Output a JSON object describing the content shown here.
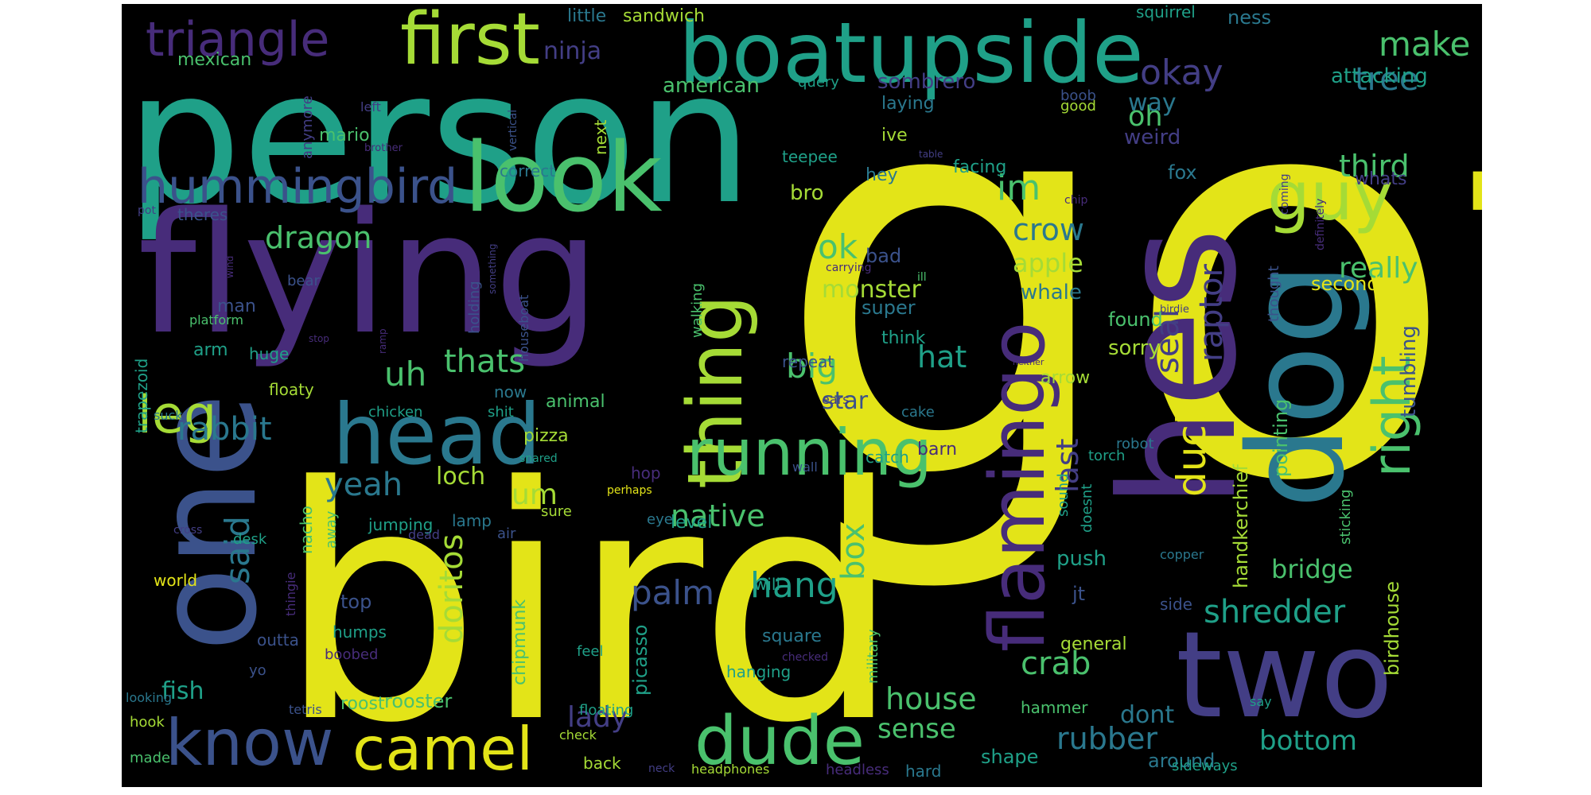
{
  "colors": {
    "background": "#000000",
    "yellow": "#e3e418",
    "lime": "#a5db36",
    "green": "#4ac16d",
    "teal": "#1fa088",
    "cyan": "#2a788e",
    "blue": "#3b528b",
    "indigo": "#433e85",
    "purple": "#472c7a"
  },
  "words": [
    {
      "text": "got",
      "color": "yellow"
    },
    {
      "text": "bird",
      "color": "yellow"
    },
    {
      "text": "person",
      "color": "teal"
    },
    {
      "text": "flying",
      "color": "purple"
    },
    {
      "text": "hes",
      "color": "purple"
    },
    {
      "text": "dog",
      "color": "cyan"
    },
    {
      "text": "one",
      "color": "blue"
    },
    {
      "text": "two",
      "color": "indigo"
    },
    {
      "text": "boatupside",
      "color": "teal"
    },
    {
      "text": "look",
      "color": "green"
    },
    {
      "text": "first",
      "color": "lime"
    },
    {
      "text": "head",
      "color": "cyan"
    },
    {
      "text": "thing",
      "color": "lime"
    },
    {
      "text": "flamingo",
      "color": "purple"
    },
    {
      "text": "running",
      "color": "green"
    },
    {
      "text": "dude",
      "color": "green"
    },
    {
      "text": "camel",
      "color": "yellow"
    },
    {
      "text": "know",
      "color": "blue"
    },
    {
      "text": "guy",
      "color": "lime"
    },
    {
      "text": "right",
      "color": "green"
    },
    {
      "text": "leg",
      "color": "lime"
    },
    {
      "text": "hummingbird",
      "color": "blue"
    },
    {
      "text": "triangle",
      "color": "purple"
    },
    {
      "text": "duck",
      "color": "yellow"
    },
    {
      "text": "seal",
      "color": "indigo"
    },
    {
      "text": "raptor",
      "color": "indigo"
    },
    {
      "text": "make",
      "color": "green"
    },
    {
      "text": "tree",
      "color": "cyan"
    },
    {
      "text": "okay",
      "color": "indigo"
    },
    {
      "text": "oh",
      "color": "green"
    },
    {
      "text": "third",
      "color": "green"
    },
    {
      "text": "really",
      "color": "green"
    },
    {
      "text": "crow",
      "color": "cyan"
    },
    {
      "text": "im",
      "color": "green"
    },
    {
      "text": "apple",
      "color": "lime"
    },
    {
      "text": "whale",
      "color": "cyan"
    },
    {
      "text": "ok",
      "color": "green"
    },
    {
      "text": "monster",
      "color": "lime"
    },
    {
      "text": "dragon",
      "color": "green"
    },
    {
      "text": "big",
      "color": "green"
    },
    {
      "text": "hat",
      "color": "teal"
    },
    {
      "text": "thats",
      "color": "green"
    },
    {
      "text": "uh",
      "color": "green"
    },
    {
      "text": "rabbit",
      "color": "cyan"
    },
    {
      "text": "said",
      "color": "cyan"
    },
    {
      "text": "yeah",
      "color": "cyan"
    },
    {
      "text": "loch",
      "color": "lime"
    },
    {
      "text": "um",
      "color": "lime"
    },
    {
      "text": "last",
      "color": "indigo"
    },
    {
      "text": "doritos",
      "color": "lime"
    },
    {
      "text": "hang",
      "color": "teal"
    },
    {
      "text": "palm",
      "color": "blue"
    },
    {
      "text": "box",
      "color": "green"
    },
    {
      "text": "crab",
      "color": "green"
    },
    {
      "text": "shredder",
      "color": "teal"
    },
    {
      "text": "bridge",
      "color": "green"
    },
    {
      "text": "bottom",
      "color": "teal"
    },
    {
      "text": "rubber",
      "color": "cyan"
    },
    {
      "text": "house",
      "color": "green"
    },
    {
      "text": "sense",
      "color": "green"
    },
    {
      "text": "lady",
      "color": "indigo"
    },
    {
      "text": "fish",
      "color": "teal"
    },
    {
      "text": "rooster",
      "color": "green"
    },
    {
      "text": "roost",
      "color": "green"
    },
    {
      "text": "native",
      "color": "green"
    },
    {
      "text": "star",
      "color": "blue"
    },
    {
      "text": "sorry",
      "color": "lime"
    },
    {
      "text": "found",
      "color": "green"
    },
    {
      "text": "second",
      "color": "yellow"
    },
    {
      "text": "attacking",
      "color": "teal"
    },
    {
      "text": "tumbling",
      "color": "blue"
    },
    {
      "text": "birdhouse",
      "color": "lime"
    },
    {
      "text": "pointing",
      "color": "green"
    },
    {
      "text": "handkerchief",
      "color": "lime"
    },
    {
      "text": "ninja",
      "color": "indigo"
    },
    {
      "text": "sombrero",
      "color": "indigo"
    },
    {
      "text": "american",
      "color": "green"
    },
    {
      "text": "way",
      "color": "cyan"
    },
    {
      "text": "weird",
      "color": "indigo"
    },
    {
      "text": "fox",
      "color": "cyan"
    },
    {
      "text": "whats",
      "color": "indigo"
    },
    {
      "text": "mexican",
      "color": "green"
    },
    {
      "text": "little",
      "color": "cyan"
    },
    {
      "text": "sandwich",
      "color": "lime"
    },
    {
      "text": "squirrel",
      "color": "teal"
    },
    {
      "text": "ness",
      "color": "cyan"
    },
    {
      "text": "query",
      "color": "teal"
    },
    {
      "text": "good",
      "color": "lime"
    },
    {
      "text": "boob",
      "color": "blue"
    },
    {
      "text": "laying",
      "color": "cyan"
    },
    {
      "text": "mario",
      "color": "green"
    },
    {
      "text": "ive",
      "color": "lime"
    },
    {
      "text": "correct",
      "color": "cyan"
    },
    {
      "text": "next",
      "color": "lime"
    },
    {
      "text": "teepee",
      "color": "teal"
    },
    {
      "text": "facing",
      "color": "teal"
    },
    {
      "text": "bro",
      "color": "lime"
    },
    {
      "text": "hey",
      "color": "cyan"
    },
    {
      "text": "theres",
      "color": "blue"
    },
    {
      "text": "bad",
      "color": "blue"
    },
    {
      "text": "super",
      "color": "cyan"
    },
    {
      "text": "think",
      "color": "teal"
    },
    {
      "text": "man",
      "color": "blue"
    },
    {
      "text": "arm",
      "color": "teal"
    },
    {
      "text": "huge",
      "color": "teal"
    },
    {
      "text": "floaty",
      "color": "lime"
    },
    {
      "text": "chicken",
      "color": "teal"
    },
    {
      "text": "animal",
      "color": "green"
    },
    {
      "text": "now",
      "color": "cyan"
    },
    {
      "text": "shit",
      "color": "teal"
    },
    {
      "text": "pizza",
      "color": "lime"
    },
    {
      "text": "repeat",
      "color": "blue"
    },
    {
      "text": "ears",
      "color": "indigo"
    },
    {
      "text": "arrow",
      "color": "lime"
    },
    {
      "text": "cake",
      "color": "cyan"
    },
    {
      "text": "barn",
      "color": "purple"
    },
    {
      "text": "catch",
      "color": "teal"
    },
    {
      "text": "wall",
      "color": "blue"
    },
    {
      "text": "torch",
      "color": "teal"
    },
    {
      "text": "robot",
      "color": "cyan"
    },
    {
      "text": "hop",
      "color": "purple"
    },
    {
      "text": "snared",
      "color": "teal"
    },
    {
      "text": "perhaps",
      "color": "yellow"
    },
    {
      "text": "eye",
      "color": "cyan"
    },
    {
      "text": "sure",
      "color": "lime"
    },
    {
      "text": "jumping",
      "color": "teal"
    },
    {
      "text": "lamp",
      "color": "cyan"
    },
    {
      "text": "level",
      "color": "teal"
    },
    {
      "text": "nacho",
      "color": "green"
    },
    {
      "text": "away",
      "color": "green"
    },
    {
      "text": "desk",
      "color": "teal"
    },
    {
      "text": "world",
      "color": "yellow"
    },
    {
      "text": "top",
      "color": "blue"
    },
    {
      "text": "humps",
      "color": "teal"
    },
    {
      "text": "boobed",
      "color": "purple"
    },
    {
      "text": "chipmunk",
      "color": "green"
    },
    {
      "text": "picasso",
      "color": "teal"
    },
    {
      "text": "square",
      "color": "cyan"
    },
    {
      "text": "military",
      "color": "green"
    },
    {
      "text": "feel",
      "color": "teal"
    },
    {
      "text": "checked",
      "color": "purple"
    },
    {
      "text": "hanging",
      "color": "teal"
    },
    {
      "text": "will",
      "color": "teal"
    },
    {
      "text": "push",
      "color": "teal"
    },
    {
      "text": "jt",
      "color": "blue"
    },
    {
      "text": "general",
      "color": "lime"
    },
    {
      "text": "hammer",
      "color": "green"
    },
    {
      "text": "dont",
      "color": "cyan"
    },
    {
      "text": "around",
      "color": "cyan"
    },
    {
      "text": "shape",
      "color": "teal"
    },
    {
      "text": "hard",
      "color": "cyan"
    },
    {
      "text": "headless",
      "color": "purple"
    },
    {
      "text": "sideways",
      "color": "teal"
    },
    {
      "text": "say",
      "color": "teal"
    },
    {
      "text": "side",
      "color": "blue"
    },
    {
      "text": "copper",
      "color": "cyan"
    },
    {
      "text": "sticking",
      "color": "green"
    },
    {
      "text": "doesnt",
      "color": "teal"
    },
    {
      "text": "sound",
      "color": "teal"
    },
    {
      "text": "floating",
      "color": "teal"
    },
    {
      "text": "check",
      "color": "lime"
    },
    {
      "text": "neck",
      "color": "indigo"
    },
    {
      "text": "headphones",
      "color": "lime"
    },
    {
      "text": "back",
      "color": "lime"
    },
    {
      "text": "hook",
      "color": "lime"
    },
    {
      "text": "made",
      "color": "green"
    },
    {
      "text": "looking",
      "color": "cyan"
    },
    {
      "text": "tetris",
      "color": "blue"
    },
    {
      "text": "outta",
      "color": "blue"
    },
    {
      "text": "yo",
      "color": "blue"
    },
    {
      "text": "thingie",
      "color": "purple"
    },
    {
      "text": "dead",
      "color": "indigo"
    },
    {
      "text": "air",
      "color": "blue"
    },
    {
      "text": "cross",
      "color": "indigo"
    },
    {
      "text": "suck",
      "color": "cyan"
    },
    {
      "text": "trapezoid",
      "color": "teal"
    },
    {
      "text": "platform",
      "color": "green"
    },
    {
      "text": "stop",
      "color": "purple"
    },
    {
      "text": "ramp",
      "color": "purple"
    },
    {
      "text": "bear",
      "color": "blue"
    },
    {
      "text": "wind",
      "color": "purple"
    },
    {
      "text": "pot",
      "color": "indigo"
    },
    {
      "text": "holding",
      "color": "blue"
    },
    {
      "text": "houseboat",
      "color": "blue"
    },
    {
      "text": "walking",
      "color": "green"
    },
    {
      "text": "something",
      "color": "indigo"
    },
    {
      "text": "anymore",
      "color": "indigo"
    },
    {
      "text": "brother",
      "color": "purple"
    },
    {
      "text": "left",
      "color": "indigo"
    },
    {
      "text": "vertical",
      "color": "blue"
    },
    {
      "text": "table",
      "color": "indigo"
    },
    {
      "text": "chip",
      "color": "purple"
    },
    {
      "text": "ill",
      "color": "green"
    },
    {
      "text": "carrying",
      "color": "purple"
    },
    {
      "text": "coming",
      "color": "indigo"
    },
    {
      "text": "thought",
      "color": "blue"
    },
    {
      "text": "definitely",
      "color": "purple"
    },
    {
      "text": "birdie",
      "color": "indigo"
    },
    {
      "text": "neither",
      "color": "purple"
    }
  ]
}
